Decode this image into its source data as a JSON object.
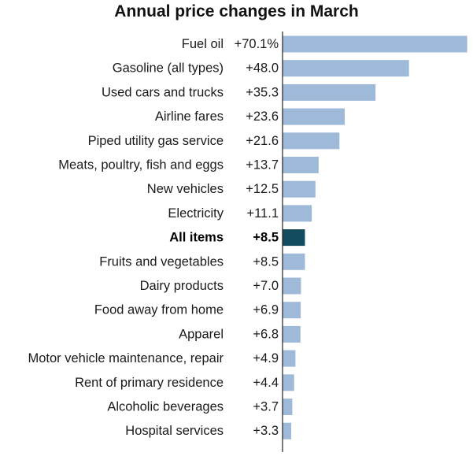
{
  "title": "Annual price changes in March",
  "colors": {
    "bar": "#9fb9d9",
    "highlight": "#134b5f",
    "axis": "#222222"
  },
  "chart_data": {
    "type": "bar",
    "orientation": "horizontal",
    "title": "Annual price changes in March",
    "xlim": [
      0,
      72
    ],
    "grid": false,
    "highlight": "All items",
    "rows": [
      {
        "category": "Fuel oil",
        "label": "+70.1%",
        "value": 70.1
      },
      {
        "category": "Gasoline (all types)",
        "label": "+48.0",
        "value": 48.0
      },
      {
        "category": "Used cars and trucks",
        "label": "+35.3",
        "value": 35.3
      },
      {
        "category": "Airline fares",
        "label": "+23.6",
        "value": 23.6
      },
      {
        "category": "Piped utility gas service",
        "label": "+21.6",
        "value": 21.6
      },
      {
        "category": "Meats, poultry, fish and eggs",
        "label": "+13.7",
        "value": 13.7
      },
      {
        "category": "New vehicles",
        "label": "+12.5",
        "value": 12.5
      },
      {
        "category": "Electricity",
        "label": "+11.1",
        "value": 11.1
      },
      {
        "category": "All items",
        "label": "+8.5",
        "value": 8.5
      },
      {
        "category": "Fruits and vegetables",
        "label": "+8.5",
        "value": 8.5
      },
      {
        "category": "Dairy products",
        "label": "+7.0",
        "value": 7.0
      },
      {
        "category": "Food away from home",
        "label": "+6.9",
        "value": 6.9
      },
      {
        "category": "Apparel",
        "label": "+6.8",
        "value": 6.8
      },
      {
        "category": "Motor vehicle maintenance, repair",
        "label": "+4.9",
        "value": 4.9
      },
      {
        "category": "Rent of primary residence",
        "label": "+4.4",
        "value": 4.4
      },
      {
        "category": "Alcoholic beverages",
        "label": "+3.7",
        "value": 3.7
      },
      {
        "category": "Hospital services",
        "label": "+3.3",
        "value": 3.3
      }
    ]
  }
}
